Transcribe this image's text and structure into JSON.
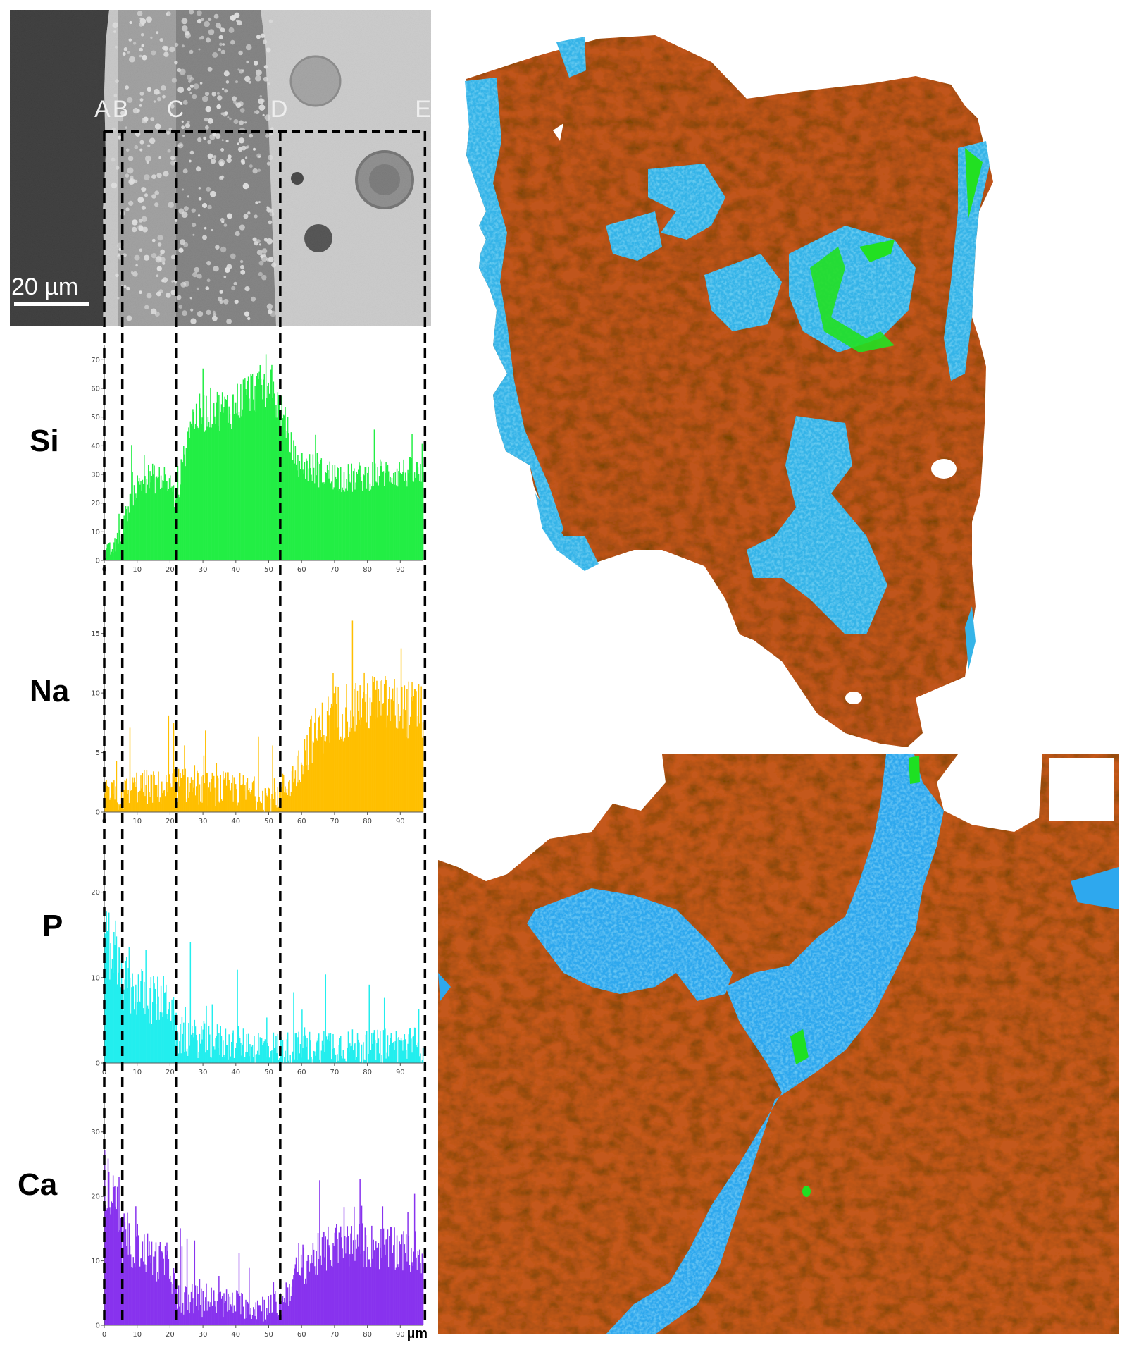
{
  "sem": {
    "markers": [
      "A",
      "B",
      "C",
      "D",
      "E"
    ],
    "marker_positions_um": [
      0,
      5.5,
      22,
      53.5,
      97.5
    ],
    "scale_bar_label": "20 µm"
  },
  "chart_data": [
    {
      "type": "bar",
      "element": "Si",
      "color": "#22ee44",
      "xlim": [
        0,
        97
      ],
      "ylim": [
        0,
        75
      ],
      "xticks": [
        0,
        10,
        20,
        30,
        40,
        50,
        60,
        70,
        80,
        90
      ],
      "yticks": [
        0,
        10,
        20,
        30,
        40,
        50,
        60,
        70
      ],
      "profile": {
        "x": [
          0,
          3,
          5.5,
          8,
          12,
          16,
          20,
          22,
          26,
          32,
          38,
          44,
          50,
          53.5,
          58,
          66,
          75,
          85,
          95,
          97
        ],
        "y": [
          2,
          4,
          10,
          22,
          28,
          28,
          26,
          20,
          48,
          52,
          52,
          58,
          60,
          52,
          34,
          30,
          28,
          30,
          30,
          28
        ]
      },
      "noise_amplitude": 14
    },
    {
      "type": "bar",
      "element": "Na",
      "color": "#ffbf00",
      "xlim": [
        0,
        97
      ],
      "ylim": [
        0,
        18
      ],
      "xticks": [
        0,
        10,
        20,
        30,
        40,
        50,
        60,
        70,
        80,
        90
      ],
      "yticks": [
        0,
        5,
        10,
        15
      ],
      "profile": {
        "x": [
          0,
          5,
          10,
          20,
          22,
          30,
          40,
          50,
          53.5,
          58,
          63,
          70,
          80,
          90,
          97
        ],
        "y": [
          1.2,
          1.2,
          2.0,
          1.8,
          2.2,
          1.8,
          1.8,
          1.2,
          1.5,
          3,
          6,
          8,
          9,
          8.5,
          8
        ]
      },
      "noise_amplitude": 6
    },
    {
      "type": "bar",
      "element": "P",
      "color": "#22eeee",
      "xlim": [
        0,
        97
      ],
      "ylim": [
        0,
        25
      ],
      "xticks": [
        0,
        10,
        20,
        30,
        40,
        50,
        60,
        70,
        80,
        90
      ],
      "yticks": [
        0,
        10,
        20
      ],
      "profile": {
        "x": [
          0,
          3,
          5.5,
          10,
          15,
          20,
          22,
          30,
          40,
          53.5,
          60,
          70,
          80,
          90,
          97
        ],
        "y": [
          14,
          12,
          9,
          8,
          7,
          7,
          3,
          2.5,
          2,
          1.5,
          1.5,
          2,
          1.5,
          2,
          2
        ]
      },
      "noise_amplitude": 9
    },
    {
      "type": "bar",
      "element": "Ca",
      "color": "#8833ee",
      "xlim": [
        0,
        97
      ],
      "ylim": [
        0,
        35
      ],
      "xticks": [
        0,
        10,
        20,
        30,
        40,
        50,
        60,
        70,
        80,
        90
      ],
      "yticks": [
        0,
        10,
        20,
        30
      ],
      "xlabel": "µm",
      "profile": {
        "x": [
          0,
          3,
          5.5,
          10,
          15,
          20,
          22,
          30,
          40,
          50,
          53.5,
          60,
          70,
          80,
          90,
          97
        ],
        "y": [
          22,
          18,
          12,
          12,
          10,
          9,
          4,
          3.5,
          3,
          2.5,
          3,
          9,
          12,
          12,
          11,
          11
        ]
      },
      "noise_amplitude": 10
    }
  ]
}
